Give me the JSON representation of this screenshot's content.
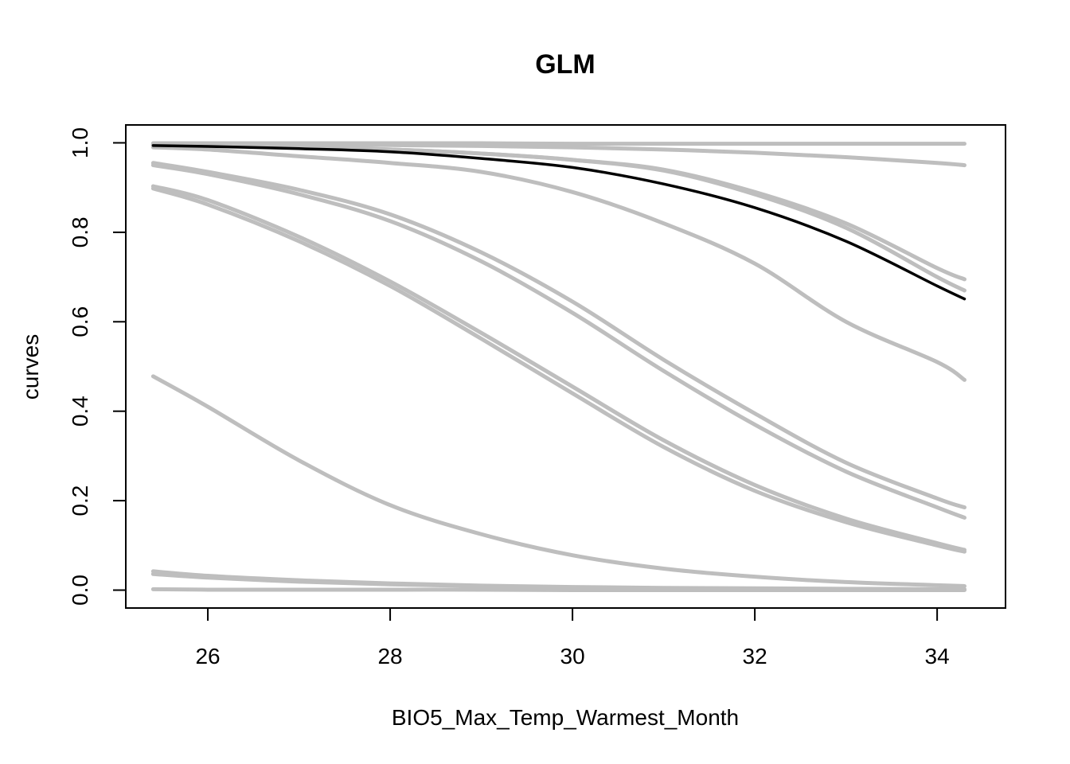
{
  "chart_data": {
    "type": "line",
    "title": "GLM",
    "xlabel": "BIO5_Max_Temp_Warmest_Month",
    "ylabel": "curves",
    "xlim": [
      25.1,
      34.75
    ],
    "ylim": [
      -0.04,
      1.04
    ],
    "x_ticks": [
      26,
      28,
      30,
      32,
      34
    ],
    "x_tick_labels": [
      "26",
      "28",
      "30",
      "32",
      "34"
    ],
    "y_ticks": [
      0.0,
      0.2,
      0.4,
      0.6,
      0.8,
      1.0
    ],
    "y_tick_labels": [
      "0.0",
      "0.2",
      "0.4",
      "0.6",
      "0.8",
      "1.0"
    ],
    "grid": false,
    "x_range": [
      25.4,
      34.3
    ],
    "x": [
      25.4,
      26.0,
      27.0,
      28.0,
      29.0,
      30.0,
      31.0,
      32.0,
      33.0,
      34.0,
      34.3
    ],
    "series": [
      {
        "color": "#bebebe",
        "values": [
          0.999,
          0.999,
          0.999,
          0.999,
          0.999,
          0.998,
          0.998,
          0.998,
          0.998,
          0.998,
          0.998
        ]
      },
      {
        "color": "#bebebe",
        "values": [
          0.997,
          0.997,
          0.996,
          0.995,
          0.993,
          0.99,
          0.985,
          0.978,
          0.968,
          0.955,
          0.95
        ]
      },
      {
        "color": "#bebebe",
        "values": [
          0.996,
          0.994,
          0.99,
          0.985,
          0.976,
          0.962,
          0.94,
          0.89,
          0.82,
          0.72,
          0.695
        ]
      },
      {
        "color": "#bebebe",
        "values": [
          0.996,
          0.994,
          0.99,
          0.985,
          0.976,
          0.962,
          0.938,
          0.885,
          0.81,
          0.7,
          0.67
        ]
      },
      {
        "color": "#bebebe",
        "values": [
          0.99,
          0.985,
          0.97,
          0.955,
          0.935,
          0.89,
          0.82,
          0.73,
          0.6,
          0.51,
          0.47
        ]
      },
      {
        "color": "#bebebe",
        "values": [
          0.955,
          0.935,
          0.895,
          0.84,
          0.755,
          0.645,
          0.515,
          0.395,
          0.285,
          0.205,
          0.185
        ]
      },
      {
        "color": "#bebebe",
        "values": [
          0.95,
          0.93,
          0.885,
          0.825,
          0.735,
          0.62,
          0.49,
          0.37,
          0.265,
          0.185,
          0.162
        ]
      },
      {
        "color": "#bebebe",
        "values": [
          0.903,
          0.872,
          0.79,
          0.69,
          0.575,
          0.455,
          0.335,
          0.235,
          0.16,
          0.105,
          0.09
        ]
      },
      {
        "color": "#bebebe",
        "values": [
          0.898,
          0.862,
          0.78,
          0.68,
          0.562,
          0.44,
          0.32,
          0.222,
          0.152,
          0.1,
          0.086
        ]
      },
      {
        "color": "#bebebe",
        "values": [
          0.478,
          0.41,
          0.29,
          0.19,
          0.125,
          0.078,
          0.048,
          0.03,
          0.018,
          0.011,
          0.009
        ]
      },
      {
        "color": "#bebebe",
        "values": [
          0.042,
          0.032,
          0.022,
          0.015,
          0.01,
          0.007,
          0.005,
          0.004,
          0.003,
          0.002,
          0.002
        ]
      },
      {
        "color": "#bebebe",
        "values": [
          0.036,
          0.028,
          0.019,
          0.013,
          0.009,
          0.006,
          0.004,
          0.003,
          0.002,
          0.002,
          0.001
        ]
      },
      {
        "color": "#bebebe",
        "values": [
          0.002,
          0.001,
          0.001,
          0.001,
          0.001,
          0.0,
          0.0,
          0.0,
          0.0,
          0.0,
          0.0
        ]
      },
      {
        "color": "#000000",
        "values": [
          0.994,
          0.992,
          0.987,
          0.98,
          0.965,
          0.945,
          0.908,
          0.855,
          0.78,
          0.68,
          0.651
        ]
      }
    ]
  }
}
